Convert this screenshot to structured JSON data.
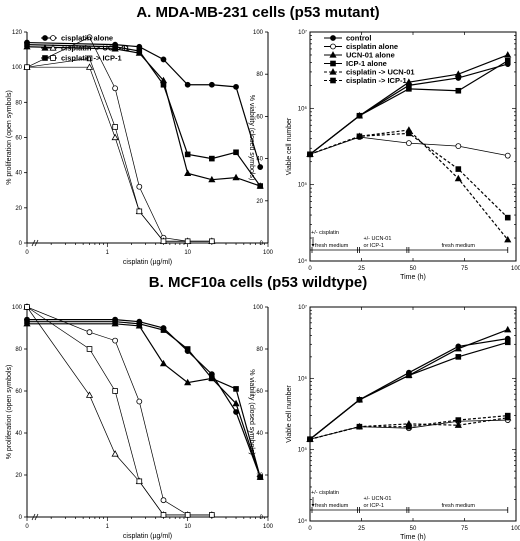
{
  "panels": [
    {
      "title": "A.  MDA-MB-231 cells (p53 mutant)"
    },
    {
      "title": "B.  MCF10a cells (p53 wildtype)"
    }
  ],
  "chart_data": [
    {
      "type": "line",
      "panel": "A",
      "xlabel": "cisplatin (µg/ml)",
      "ylabel_left": "% proliferation (open symbols)",
      "ylabel_right": "% viability (closed symbols)",
      "x_scale": "log",
      "xlim": [
        0.1,
        100
      ],
      "ylim": [
        0,
        120
      ],
      "ylim_right": [
        0,
        100
      ],
      "x_ticks": [
        "0",
        "1",
        "10",
        "100"
      ],
      "y_ticks_left": [
        "0",
        "20",
        "40",
        "60",
        "80",
        "100",
        "120"
      ],
      "y_ticks_right": [
        "0",
        "20",
        "40",
        "60",
        "80",
        "100"
      ],
      "legend": [
        "cisplatin alone",
        "cisplatin -> UCN-01",
        "cisplatin -> ICP-1"
      ],
      "x": [
        0.1,
        0.6,
        1.25,
        2.5,
        5,
        10,
        20,
        40,
        80
      ],
      "series": [
        {
          "name": "cisplatin alone",
          "style": "open",
          "marker": "circle",
          "values": [
            100,
            117,
            88,
            32,
            3,
            1,
            1,
            null,
            null
          ]
        },
        {
          "name": "cisplatin -> UCN-01",
          "style": "open",
          "marker": "triangle",
          "values": [
            100,
            100,
            60,
            18,
            1,
            1,
            1,
            null,
            null
          ]
        },
        {
          "name": "cisplatin -> ICP-1",
          "style": "open",
          "marker": "square",
          "values": [
            100,
            105,
            66,
            18,
            1,
            1,
            1,
            null,
            null
          ]
        },
        {
          "name": "cisplatin alone",
          "style": "closed",
          "axis": "right",
          "marker": "circle",
          "values": [
            95,
            null,
            94,
            93,
            87,
            75,
            75,
            74,
            36
          ]
        },
        {
          "name": "cisplatin -> UCN-01",
          "style": "closed",
          "axis": "right",
          "marker": "triangle",
          "values": [
            93,
            null,
            92,
            90,
            77,
            33,
            30,
            31,
            27
          ]
        },
        {
          "name": "cisplatin -> ICP-1",
          "style": "closed",
          "axis": "right",
          "marker": "square",
          "values": [
            94,
            null,
            93,
            91,
            75,
            42,
            40,
            43,
            27
          ]
        }
      ]
    },
    {
      "type": "line",
      "panel": "A",
      "xlabel": "Time (h)",
      "ylabel": "Viable cell number",
      "y_scale": "log",
      "ylim": [
        10000,
        10000000
      ],
      "xlim": [
        0,
        100
      ],
      "x_ticks": [
        "0",
        "25",
        "50",
        "75",
        "100"
      ],
      "y_ticks": [
        "10⁴",
        "10⁵",
        "10⁶",
        "10⁷"
      ],
      "legend": [
        "control",
        "cisplatin alone",
        "UCN-01 alone",
        "ICP-1 alone",
        "cisplatin -> UCN-01",
        "cisplatin -> ICP-1"
      ],
      "series": [
        {
          "name": "control",
          "marker": "filled-circle",
          "line": "solid",
          "x": [
            0,
            24,
            48,
            72,
            96
          ],
          "values": [
            250000,
            800000,
            2000000,
            2500000,
            3800000
          ]
        },
        {
          "name": "cisplatin alone",
          "marker": "open-circle",
          "line": "solid",
          "x": [
            0,
            24,
            48,
            72,
            96
          ],
          "values": [
            250000,
            420000,
            350000,
            320000,
            240000
          ]
        },
        {
          "name": "UCN-01 alone",
          "marker": "filled-triangle",
          "line": "solid",
          "x": [
            0,
            24,
            48,
            72,
            96
          ],
          "values": [
            250000,
            800000,
            2200000,
            2800000,
            5000000
          ]
        },
        {
          "name": "ICP-1 alone",
          "marker": "filled-square",
          "line": "solid",
          "x": [
            0,
            24,
            48,
            72,
            96
          ],
          "values": [
            250000,
            800000,
            1800000,
            1700000,
            4200000
          ]
        },
        {
          "name": "cisplatin -> UCN-01",
          "marker": "filled-triangle",
          "line": "dashed",
          "x": [
            0,
            24,
            48,
            72,
            96
          ],
          "values": [
            250000,
            430000,
            520000,
            120000,
            19000
          ]
        },
        {
          "name": "cisplatin -> ICP-1",
          "marker": "filled-square",
          "line": "dashed",
          "x": [
            0,
            24,
            48,
            72,
            96
          ],
          "values": [
            250000,
            430000,
            470000,
            160000,
            37000
          ]
        }
      ],
      "timeline": [
        "+/- cisplatin",
        "fresh medium",
        "+/- UCN-01 or ICP-1",
        "fresh medium"
      ]
    },
    {
      "type": "line",
      "panel": "B",
      "xlabel": "cisplatin (µg/ml)",
      "ylabel_left": "% proliferation (open symbols)",
      "ylabel_right": "% viability (closed symbols)",
      "x_scale": "log",
      "xlim": [
        0.1,
        100
      ],
      "ylim": [
        0,
        100
      ],
      "ylim_right": [
        0,
        100
      ],
      "x_ticks": [
        "0",
        "1",
        "10",
        "100"
      ],
      "y_ticks_left": [
        "0",
        "20",
        "40",
        "60",
        "80",
        "100"
      ],
      "y_ticks_right": [
        "0",
        "20",
        "40",
        "60",
        "80",
        "100"
      ],
      "x": [
        0.1,
        0.6,
        1.25,
        2.5,
        5,
        10,
        20,
        40,
        80
      ],
      "series": [
        {
          "name": "cisplatin alone",
          "style": "open",
          "marker": "circle",
          "values": [
            100,
            88,
            84,
            55,
            8,
            1,
            1,
            null,
            null
          ]
        },
        {
          "name": "cisplatin -> UCN-01",
          "style": "open",
          "marker": "triangle",
          "values": [
            100,
            58,
            30,
            17,
            1,
            1,
            1,
            null,
            null
          ]
        },
        {
          "name": "cisplatin -> ICP-1",
          "style": "open",
          "marker": "square",
          "values": [
            100,
            80,
            60,
            17,
            1,
            1,
            1,
            null,
            null
          ]
        },
        {
          "name": "cisplatin alone",
          "style": "closed",
          "axis": "right",
          "marker": "circle",
          "values": [
            94,
            null,
            94,
            93,
            90,
            79,
            68,
            50,
            19
          ]
        },
        {
          "name": "cisplatin -> UCN-01",
          "style": "closed",
          "axis": "right",
          "marker": "triangle",
          "values": [
            92,
            null,
            92,
            91,
            73,
            64,
            66,
            54,
            19
          ]
        },
        {
          "name": "cisplatin -> ICP-1",
          "style": "closed",
          "axis": "right",
          "marker": "square",
          "values": [
            93,
            null,
            93,
            92,
            89,
            80,
            66,
            61,
            19
          ]
        }
      ]
    },
    {
      "type": "line",
      "panel": "B",
      "xlabel": "Time (h)",
      "ylabel": "Viable cell number",
      "y_scale": "log",
      "ylim": [
        10000,
        10000000
      ],
      "xlim": [
        0,
        100
      ],
      "x_ticks": [
        "0",
        "25",
        "50",
        "75",
        "100"
      ],
      "y_ticks": [
        "10⁴",
        "10⁵",
        "10⁶",
        "10⁷"
      ],
      "series": [
        {
          "name": "control",
          "marker": "filled-circle",
          "line": "solid",
          "x": [
            0,
            24,
            48,
            72,
            96
          ],
          "values": [
            140000,
            500000,
            1200000,
            2800000,
            3600000
          ]
        },
        {
          "name": "cisplatin alone",
          "marker": "open-circle",
          "line": "solid",
          "x": [
            0,
            24,
            48,
            72,
            96
          ],
          "values": [
            140000,
            210000,
            200000,
            250000,
            260000
          ]
        },
        {
          "name": "UCN-01 alone",
          "marker": "filled-triangle",
          "line": "solid",
          "x": [
            0,
            24,
            48,
            72,
            96
          ],
          "values": [
            140000,
            500000,
            1100000,
            2600000,
            4800000
          ]
        },
        {
          "name": "ICP-1 alone",
          "marker": "filled-square",
          "line": "solid",
          "x": [
            0,
            24,
            48,
            72,
            96
          ],
          "values": [
            140000,
            500000,
            1100000,
            2000000,
            3200000
          ]
        },
        {
          "name": "cisplatin -> UCN-01",
          "marker": "filled-triangle",
          "line": "dashed",
          "x": [
            0,
            24,
            48,
            72,
            96
          ],
          "values": [
            140000,
            210000,
            230000,
            220000,
            280000
          ]
        },
        {
          "name": "cisplatin -> ICP-1",
          "marker": "filled-square",
          "line": "dashed",
          "x": [
            0,
            24,
            48,
            72,
            96
          ],
          "values": [
            140000,
            210000,
            210000,
            260000,
            300000
          ]
        }
      ],
      "timeline": [
        "+/- cisplatin",
        "fresh medium",
        "+/- UCN-01 or ICP-1",
        "fresh medium"
      ]
    }
  ]
}
